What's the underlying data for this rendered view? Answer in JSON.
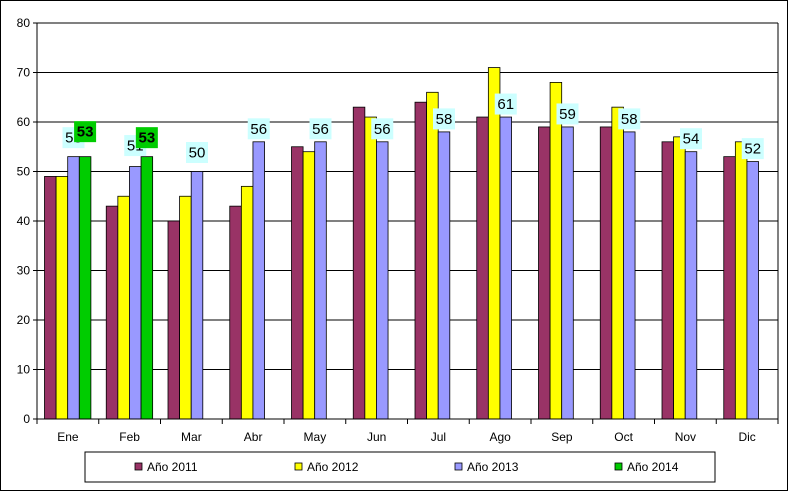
{
  "chart_data": {
    "type": "bar",
    "categories": [
      "Ene",
      "Feb",
      "Mar",
      "Abr",
      "May",
      "Jun",
      "Jul",
      "Ago",
      "Sep",
      "Oct",
      "Nov",
      "Dic"
    ],
    "series": [
      {
        "name": "Año 2011",
        "color": "#993366",
        "values": [
          49,
          43,
          40,
          43,
          55,
          63,
          64,
          61,
          59,
          59,
          56,
          53
        ]
      },
      {
        "name": "Año 2012",
        "color": "#ffff00",
        "values": [
          49,
          45,
          45,
          47,
          54,
          61,
          66,
          71,
          68,
          63,
          57,
          56
        ]
      },
      {
        "name": "Año 2013",
        "color": "#9999ff",
        "values": [
          53,
          51,
          50,
          56,
          56,
          56,
          58,
          61,
          59,
          58,
          54,
          52
        ]
      },
      {
        "name": "Año 2014",
        "color": "#00cc00",
        "values": [
          53,
          53,
          null,
          null,
          null,
          null,
          null,
          null,
          null,
          null,
          null,
          null
        ]
      }
    ],
    "data_labels": [
      {
        "series": 2,
        "category": 0,
        "text": "53",
        "bg": "#ccffff"
      },
      {
        "series": 3,
        "category": 0,
        "text": "53",
        "bg": "#00cc00",
        "bold": true
      },
      {
        "series": 2,
        "category": 1,
        "text": "51",
        "bg": "#ccffff"
      },
      {
        "series": 3,
        "category": 1,
        "text": "53",
        "bg": "#00cc00",
        "bold": true
      },
      {
        "series": 2,
        "category": 2,
        "text": "50",
        "bg": "#ccffff"
      },
      {
        "series": 2,
        "category": 3,
        "text": "56",
        "bg": "#ccffff"
      },
      {
        "series": 2,
        "category": 4,
        "text": "56",
        "bg": "#ccffff"
      },
      {
        "series": 2,
        "category": 5,
        "text": "56",
        "bg": "#ccffff"
      },
      {
        "series": 2,
        "category": 6,
        "text": "58",
        "bg": "#ccffff"
      },
      {
        "series": 2,
        "category": 7,
        "text": "61",
        "bg": "#ccffff"
      },
      {
        "series": 2,
        "category": 8,
        "text": "59",
        "bg": "#ccffff"
      },
      {
        "series": 2,
        "category": 9,
        "text": "58",
        "bg": "#ccffff"
      },
      {
        "series": 2,
        "category": 10,
        "text": "54",
        "bg": "#ccffff"
      },
      {
        "series": 2,
        "category": 11,
        "text": "52",
        "bg": "#ccffff"
      }
    ],
    "ylim": [
      0,
      80
    ],
    "yticks": [
      0,
      10,
      20,
      30,
      40,
      50,
      60,
      70,
      80
    ],
    "grid": true,
    "legend": "bottom",
    "title": "",
    "xlabel": "",
    "ylabel": ""
  }
}
